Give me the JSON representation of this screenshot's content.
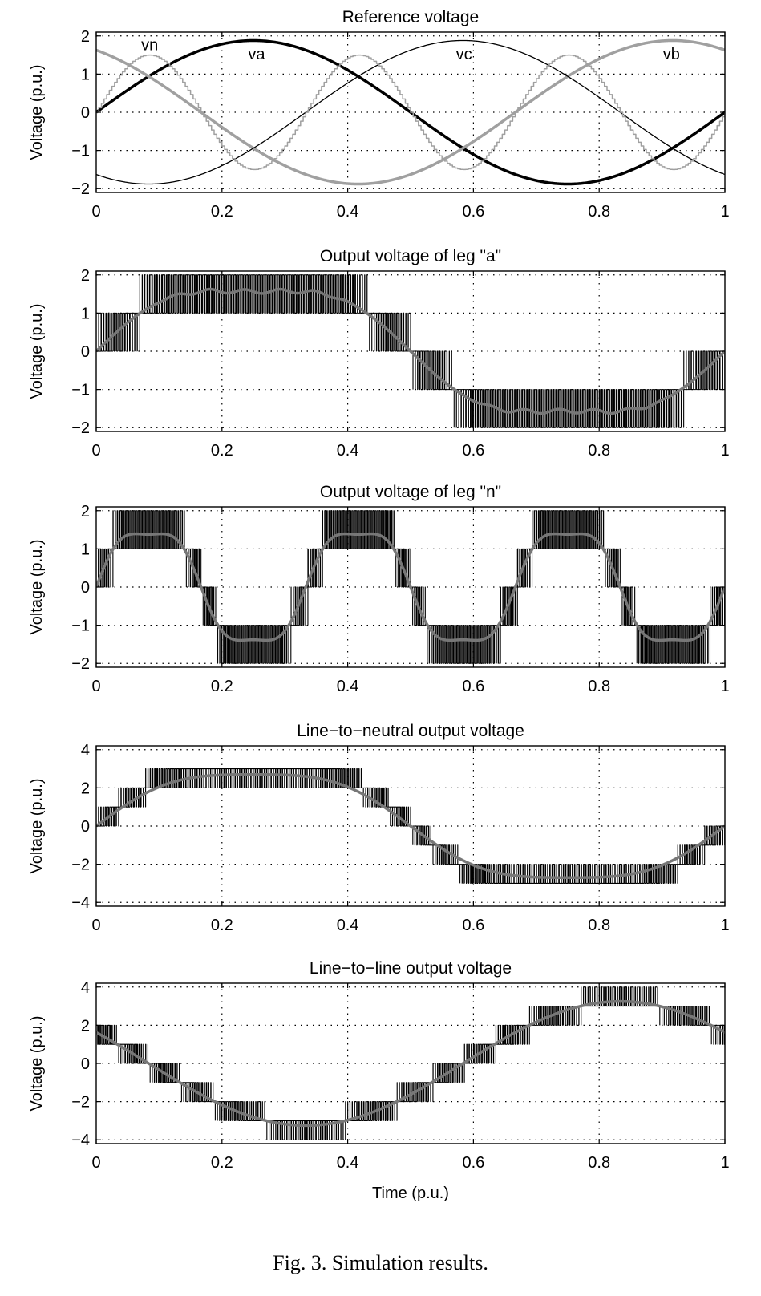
{
  "chart_data": [
    {
      "type": "line",
      "title": "Reference voltage",
      "xlabel": "",
      "ylabel": "Voltage (p.u.)",
      "xlim": [
        0,
        1
      ],
      "ylim": [
        -2.1,
        2.1
      ],
      "xticks": [
        "0",
        "0.2",
        "0.4",
        "0.6",
        "0.8",
        "1"
      ],
      "yticks": [
        "−2",
        "−1",
        "0",
        "1",
        "2"
      ],
      "grid": true,
      "annotations": [
        "vn",
        "va",
        "vc",
        "vb"
      ],
      "series": [
        {
          "name": "va",
          "kind": "sine",
          "amplitude": 1.88,
          "phase_deg": 0,
          "harmonics": 1,
          "color": "#000000",
          "width": 3.5
        },
        {
          "name": "vb",
          "kind": "sine",
          "amplitude": 1.88,
          "phase_deg": 120,
          "harmonics": 1,
          "color": "#a0a0a0",
          "width": 3.5
        },
        {
          "name": "vc",
          "kind": "sine",
          "amplitude": 1.88,
          "phase_deg": -120,
          "harmonics": 1,
          "color": "#000000",
          "width": 1.3
        },
        {
          "name": "vn",
          "kind": "sine",
          "amplitude": 1.5,
          "phase_deg": 0,
          "harmonics": 3,
          "color": "#a0a0a0",
          "width": 1.5
        }
      ],
      "label_positions": [
        {
          "text": "vn",
          "x": 0.085,
          "y": 1.8
        },
        {
          "text": "va",
          "x": 0.255,
          "y": 1.55
        },
        {
          "text": "vc",
          "x": 0.585,
          "y": 1.55
        },
        {
          "text": "vb",
          "x": 0.915,
          "y": 1.55
        }
      ]
    },
    {
      "type": "line",
      "title": "Output voltage of leg \"a\"",
      "xlabel": "",
      "ylabel": "Voltage (p.u.)",
      "xlim": [
        0,
        1
      ],
      "ylim": [
        -2.1,
        2.1
      ],
      "xticks": [
        "0",
        "0.2",
        "0.4",
        "0.6",
        "0.8",
        "1"
      ],
      "yticks": [
        "−2",
        "−1",
        "0",
        "1",
        "2"
      ],
      "grid": true,
      "series": [
        {
          "name": "pwm",
          "kind": "pwm",
          "levels": 1,
          "amplitude": 1.88,
          "third": 0.25,
          "color": "#000000"
        },
        {
          "name": "filtered",
          "kind": "filtered",
          "amplitude": 1.88,
          "third": 0.25,
          "color": "#777777"
        }
      ]
    },
    {
      "type": "line",
      "title": "Output voltage of leg \"n\"",
      "xlabel": "",
      "ylabel": "Voltage (p.u.)",
      "xlim": [
        0,
        1
      ],
      "ylim": [
        -2.1,
        2.1
      ],
      "xticks": [
        "0",
        "0.2",
        "0.4",
        "0.6",
        "0.8",
        "1"
      ],
      "yticks": [
        "−2",
        "−1",
        "0",
        "1",
        "2"
      ],
      "grid": true,
      "series": [
        {
          "name": "pwm",
          "kind": "pwm3",
          "amplitude": 1.6,
          "color": "#000000"
        },
        {
          "name": "filtered",
          "kind": "filtered3",
          "amplitude": 1.6,
          "color": "#777777"
        }
      ]
    },
    {
      "type": "line",
      "title": "Line−to−neutral output voltage",
      "xlabel": "",
      "ylabel": "Voltage (p.u.)",
      "xlim": [
        0,
        1
      ],
      "ylim": [
        -4.2,
        4.2
      ],
      "xticks": [
        "0",
        "0.2",
        "0.4",
        "0.6",
        "0.8",
        "1"
      ],
      "yticks": [
        "−4",
        "−2",
        "0",
        "2",
        "4"
      ],
      "grid": true,
      "series": [
        {
          "name": "pwm",
          "kind": "pwm_ln",
          "color": "#000000"
        },
        {
          "name": "filtered",
          "kind": "filtered_ln",
          "color": "#777777"
        }
      ]
    },
    {
      "type": "line",
      "title": "Line−to−line output voltage",
      "xlabel": "Time (p.u.)",
      "ylabel": "Voltage (p.u.)",
      "xlim": [
        0,
        1
      ],
      "ylim": [
        -4.2,
        4.2
      ],
      "xticks": [
        "0",
        "0.2",
        "0.4",
        "0.6",
        "0.8",
        "1"
      ],
      "yticks": [
        "−4",
        "−2",
        "0",
        "2",
        "4"
      ],
      "grid": true,
      "series": [
        {
          "name": "pwm",
          "kind": "pwm_ll",
          "amplitude": 3.25,
          "phase_deg": 150,
          "color": "#000000"
        },
        {
          "name": "filtered",
          "kind": "filtered_ll",
          "amplitude": 3.25,
          "phase_deg": 150,
          "color": "#777777"
        }
      ]
    }
  ],
  "caption": "Fig. 3.    Simulation results."
}
